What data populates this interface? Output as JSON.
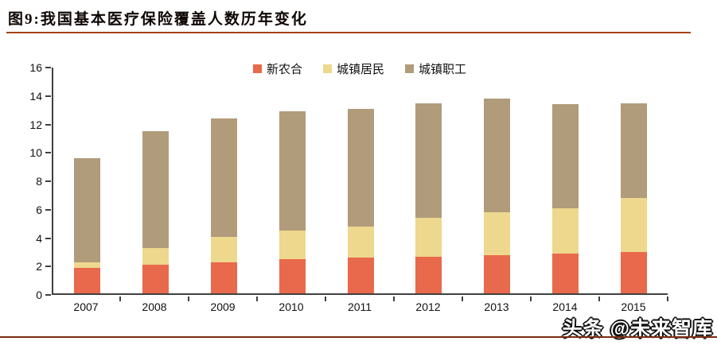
{
  "header": {
    "title": "图9:我国基本医疗保险覆盖人数历年变化"
  },
  "watermark": {
    "text": "头条 @未来智库"
  },
  "colors": {
    "title_underline": "#A6430E",
    "footer_line": "#7E2B10",
    "axis": "#404040",
    "series_xinnonghe": "#E8694B",
    "series_chengzhenjumin": "#EDD88D",
    "series_chengzhenzhigong": "#B09B7B"
  },
  "chart_data": {
    "type": "bar",
    "stacked": true,
    "title": "图9:我国基本医疗保险覆盖人数历年变化",
    "categories": [
      "2007",
      "2008",
      "2009",
      "2010",
      "2011",
      "2012",
      "2013",
      "2014",
      "2015"
    ],
    "series": [
      {
        "name": "新农合",
        "color": "#E8694B",
        "values": [
          1.8,
          2.0,
          2.2,
          2.4,
          2.5,
          2.6,
          2.7,
          2.8,
          2.9
        ]
      },
      {
        "name": "城镇居民",
        "color": "#EDD88D",
        "values": [
          0.4,
          1.2,
          1.8,
          2.0,
          2.2,
          2.7,
          3.0,
          3.2,
          3.8
        ]
      },
      {
        "name": "城镇职工",
        "color": "#B09B7B",
        "values": [
          7.3,
          8.2,
          8.3,
          8.4,
          8.3,
          8.1,
          8.0,
          7.3,
          6.7
        ]
      }
    ],
    "stack_totals": [
      9.5,
      11.4,
      12.3,
      12.8,
      13.0,
      13.4,
      13.7,
      13.3,
      13.4
    ],
    "xlabel": "",
    "ylabel": "",
    "ylim": [
      0,
      16
    ],
    "yticks": [
      0,
      2,
      4,
      6,
      8,
      10,
      12,
      14,
      16
    ],
    "grid": false,
    "legend_position": "top-center"
  }
}
